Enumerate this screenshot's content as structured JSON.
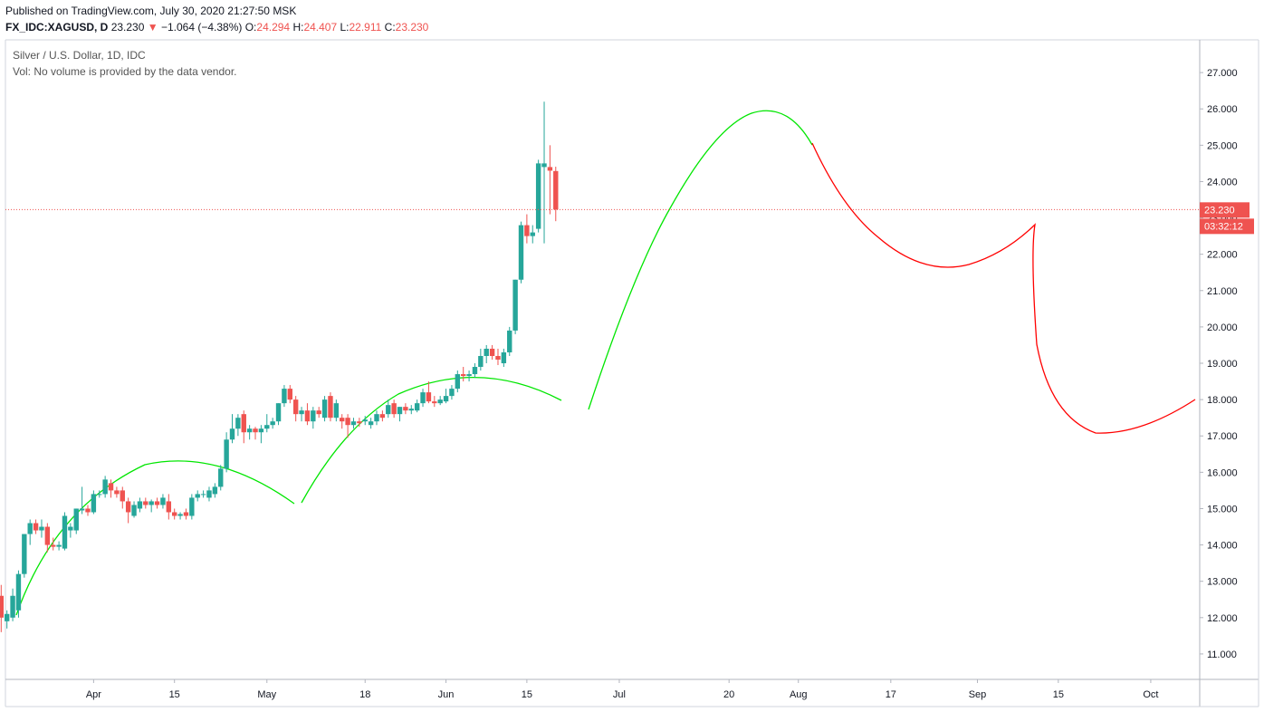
{
  "header": {
    "published": "Published on TradingView.com, July 30, 2020 21:27:50 MSK",
    "symbol": "FX_IDC:XAGUSD, D",
    "last": "23.230",
    "change_arrow": "▼",
    "change": "−1.064 (−4.38%)",
    "o_label": "O:",
    "o": "24.294",
    "h_label": "H:",
    "h": "24.407",
    "l_label": "L:",
    "l": "22.911",
    "c_label": "C:",
    "c": "23.230"
  },
  "legend": {
    "line1": "Silver / U.S. Dollar, 1D, IDC",
    "line2": "Vol: No volume is provided by the data vendor."
  },
  "price_tag": {
    "price": "23.230",
    "countdown": "03:32:12"
  },
  "colors": {
    "up": "#26a69a",
    "down": "#ef5350",
    "projection": "#ff0000",
    "cup_arcs": "#00e600"
  },
  "chart_data": {
    "type": "candlestick",
    "title": "Silver / U.S. Dollar, 1D, IDC",
    "ylim": [
      10.3,
      27.9
    ],
    "yticks": [
      "11.000",
      "12.000",
      "13.000",
      "14.000",
      "15.000",
      "16.000",
      "17.000",
      "18.000",
      "19.000",
      "20.000",
      "21.000",
      "22.000",
      "23.000",
      "24.000",
      "25.000",
      "26.000",
      "27.000"
    ],
    "xticks": [
      {
        "label": "Apr",
        "day": 1
      },
      {
        "label": "15",
        "day": 15
      },
      {
        "label": "May",
        "day": 31
      },
      {
        "label": "18",
        "day": 48
      },
      {
        "label": "Jun",
        "day": 62
      },
      {
        "label": "15",
        "day": 76
      },
      {
        "label": "Jul",
        "day": 92
      },
      {
        "label": "20",
        "day": 111
      },
      {
        "label": "Aug",
        "day": 123
      },
      {
        "label": "17",
        "day": 139
      },
      {
        "label": "Sep",
        "day": 154
      },
      {
        "label": "15",
        "day": 168
      },
      {
        "label": "Oct",
        "day": 184
      }
    ],
    "last_price": 23.23,
    "candles": [
      {
        "d": -15,
        "o": 12.6,
        "h": 12.9,
        "l": 11.6,
        "c": 12.0
      },
      {
        "d": -14,
        "o": 11.9,
        "h": 12.2,
        "l": 11.7,
        "c": 12.1
      },
      {
        "d": -13,
        "o": 12.0,
        "h": 12.8,
        "l": 11.9,
        "c": 12.6
      },
      {
        "d": -12,
        "o": 12.2,
        "h": 13.3,
        "l": 12.0,
        "c": 13.2
      },
      {
        "d": -11,
        "o": 13.2,
        "h": 14.3,
        "l": 13.1,
        "c": 14.3
      },
      {
        "d": -10,
        "o": 14.3,
        "h": 14.7,
        "l": 14.0,
        "c": 14.6
      },
      {
        "d": -9,
        "o": 14.6,
        "h": 14.7,
        "l": 14.3,
        "c": 14.4
      },
      {
        "d": -8,
        "o": 14.4,
        "h": 14.7,
        "l": 14.2,
        "c": 14.5
      },
      {
        "d": -7,
        "o": 14.5,
        "h": 14.6,
        "l": 13.8,
        "c": 14.0
      },
      {
        "d": -6,
        "o": 14.0,
        "h": 14.2,
        "l": 13.85,
        "c": 13.95
      },
      {
        "d": -5,
        "o": 13.95,
        "h": 14.1,
        "l": 13.85,
        "c": 14.0
      },
      {
        "d": -4,
        "o": 13.9,
        "h": 14.9,
        "l": 13.85,
        "c": 14.8
      },
      {
        "d": -3,
        "o": 14.4,
        "h": 14.6,
        "l": 14.2,
        "c": 14.5
      },
      {
        "d": -2,
        "o": 14.4,
        "h": 15.0,
        "l": 14.3,
        "c": 15.0
      },
      {
        "d": -1,
        "o": 14.95,
        "h": 15.6,
        "l": 14.85,
        "c": 15.0
      },
      {
        "d": 0,
        "o": 15.0,
        "h": 15.1,
        "l": 14.8,
        "c": 14.9
      },
      {
        "d": 1,
        "o": 14.9,
        "h": 15.5,
        "l": 14.85,
        "c": 15.4
      },
      {
        "d": 2,
        "o": 15.4,
        "h": 15.5,
        "l": 15.3,
        "c": 15.4
      },
      {
        "d": 3,
        "o": 15.4,
        "h": 15.9,
        "l": 15.3,
        "c": 15.8
      },
      {
        "d": 4,
        "o": 15.7,
        "h": 15.8,
        "l": 15.3,
        "c": 15.5
      },
      {
        "d": 5,
        "o": 15.5,
        "h": 15.6,
        "l": 15.3,
        "c": 15.4
      },
      {
        "d": 6,
        "o": 15.5,
        "h": 15.6,
        "l": 15.0,
        "c": 15.2
      },
      {
        "d": 7,
        "o": 15.2,
        "h": 15.3,
        "l": 14.6,
        "c": 14.9
      },
      {
        "d": 8,
        "o": 14.8,
        "h": 15.2,
        "l": 14.75,
        "c": 15.1
      },
      {
        "d": 9,
        "o": 15.0,
        "h": 15.3,
        "l": 14.9,
        "c": 15.2
      },
      {
        "d": 10,
        "o": 15.2,
        "h": 15.3,
        "l": 15.0,
        "c": 15.1
      },
      {
        "d": 11,
        "o": 15.1,
        "h": 15.25,
        "l": 14.9,
        "c": 15.2
      },
      {
        "d": 12,
        "o": 15.2,
        "h": 15.3,
        "l": 15.0,
        "c": 15.1
      },
      {
        "d": 13,
        "o": 15.1,
        "h": 15.4,
        "l": 15.0,
        "c": 15.3
      },
      {
        "d": 14,
        "o": 15.2,
        "h": 15.4,
        "l": 14.7,
        "c": 14.9
      },
      {
        "d": 15,
        "o": 14.9,
        "h": 15.0,
        "l": 14.7,
        "c": 14.8
      },
      {
        "d": 16,
        "o": 14.8,
        "h": 14.9,
        "l": 14.7,
        "c": 14.85
      },
      {
        "d": 17,
        "o": 14.9,
        "h": 15.0,
        "l": 14.7,
        "c": 14.8
      },
      {
        "d": 18,
        "o": 14.8,
        "h": 15.4,
        "l": 14.7,
        "c": 15.3
      },
      {
        "d": 19,
        "o": 15.3,
        "h": 15.5,
        "l": 15.2,
        "c": 15.4
      },
      {
        "d": 20,
        "o": 15.4,
        "h": 15.5,
        "l": 15.3,
        "c": 15.4
      },
      {
        "d": 21,
        "o": 15.3,
        "h": 15.6,
        "l": 15.2,
        "c": 15.5
      },
      {
        "d": 22,
        "o": 15.4,
        "h": 15.7,
        "l": 15.3,
        "c": 15.6
      },
      {
        "d": 23,
        "o": 15.6,
        "h": 16.2,
        "l": 15.5,
        "c": 16.1
      },
      {
        "d": 24,
        "o": 16.1,
        "h": 17.1,
        "l": 16.0,
        "c": 16.9
      },
      {
        "d": 25,
        "o": 16.9,
        "h": 17.6,
        "l": 16.8,
        "c": 17.2
      },
      {
        "d": 26,
        "o": 17.2,
        "h": 17.6,
        "l": 17.0,
        "c": 17.5
      },
      {
        "d": 27,
        "o": 17.6,
        "h": 17.7,
        "l": 16.8,
        "c": 17.1
      },
      {
        "d": 28,
        "o": 17.1,
        "h": 17.3,
        "l": 16.9,
        "c": 17.2
      },
      {
        "d": 29,
        "o": 17.2,
        "h": 17.25,
        "l": 16.9,
        "c": 17.1
      },
      {
        "d": 30,
        "o": 17.1,
        "h": 17.3,
        "l": 16.8,
        "c": 17.2
      },
      {
        "d": 31,
        "o": 17.2,
        "h": 17.6,
        "l": 17.1,
        "c": 17.3
      },
      {
        "d": 32,
        "o": 17.3,
        "h": 17.5,
        "l": 17.2,
        "c": 17.4
      },
      {
        "d": 33,
        "o": 17.4,
        "h": 17.9,
        "l": 17.3,
        "c": 17.9
      },
      {
        "d": 34,
        "o": 17.9,
        "h": 18.4,
        "l": 17.8,
        "c": 18.3
      },
      {
        "d": 35,
        "o": 18.3,
        "h": 18.4,
        "l": 17.9,
        "c": 18.0
      },
      {
        "d": 36,
        "o": 18.0,
        "h": 18.1,
        "l": 17.4,
        "c": 17.6
      },
      {
        "d": 37,
        "o": 17.6,
        "h": 17.8,
        "l": 17.4,
        "c": 17.7
      },
      {
        "d": 38,
        "o": 17.7,
        "h": 17.9,
        "l": 17.3,
        "c": 17.4
      },
      {
        "d": 39,
        "o": 17.4,
        "h": 17.8,
        "l": 17.2,
        "c": 17.7
      },
      {
        "d": 40,
        "o": 17.7,
        "h": 17.8,
        "l": 17.5,
        "c": 17.6
      },
      {
        "d": 41,
        "o": 17.5,
        "h": 18.1,
        "l": 17.4,
        "c": 18.0
      },
      {
        "d": 42,
        "o": 18.1,
        "h": 18.2,
        "l": 17.4,
        "c": 17.5
      },
      {
        "d": 43,
        "o": 17.5,
        "h": 18.0,
        "l": 17.4,
        "c": 17.9
      },
      {
        "d": 44,
        "o": 17.5,
        "h": 17.6,
        "l": 17.2,
        "c": 17.4
      },
      {
        "d": 45,
        "o": 17.5,
        "h": 17.6,
        "l": 16.95,
        "c": 17.3
      },
      {
        "d": 46,
        "o": 17.3,
        "h": 17.5,
        "l": 17.2,
        "c": 17.4
      },
      {
        "d": 47,
        "o": 17.4,
        "h": 17.5,
        "l": 17.25,
        "c": 17.35
      },
      {
        "d": 48,
        "o": 17.4,
        "h": 17.55,
        "l": 17.3,
        "c": 17.45
      },
      {
        "d": 49,
        "o": 17.3,
        "h": 17.5,
        "l": 17.2,
        "c": 17.4
      },
      {
        "d": 50,
        "o": 17.4,
        "h": 17.7,
        "l": 17.3,
        "c": 17.6
      },
      {
        "d": 51,
        "o": 17.6,
        "h": 17.7,
        "l": 17.4,
        "c": 17.5
      },
      {
        "d": 52,
        "o": 17.6,
        "h": 18.0,
        "l": 17.5,
        "c": 17.85
      },
      {
        "d": 53,
        "o": 17.9,
        "h": 18.0,
        "l": 17.5,
        "c": 17.6
      },
      {
        "d": 54,
        "o": 17.6,
        "h": 17.8,
        "l": 17.4,
        "c": 17.8
      },
      {
        "d": 55,
        "o": 17.8,
        "h": 17.9,
        "l": 17.6,
        "c": 17.7
      },
      {
        "d": 56,
        "o": 17.7,
        "h": 17.85,
        "l": 17.6,
        "c": 17.75
      },
      {
        "d": 57,
        "o": 17.7,
        "h": 18.0,
        "l": 17.65,
        "c": 17.9
      },
      {
        "d": 58,
        "o": 17.9,
        "h": 18.3,
        "l": 17.8,
        "c": 18.2
      },
      {
        "d": 59,
        "o": 18.2,
        "h": 18.5,
        "l": 17.9,
        "c": 17.95
      },
      {
        "d": 60,
        "o": 17.95,
        "h": 18.1,
        "l": 17.8,
        "c": 17.9
      },
      {
        "d": 61,
        "o": 17.9,
        "h": 18.1,
        "l": 17.85,
        "c": 18.0
      },
      {
        "d": 62,
        "o": 17.95,
        "h": 18.3,
        "l": 17.9,
        "c": 18.1
      },
      {
        "d": 63,
        "o": 18.1,
        "h": 18.4,
        "l": 18.0,
        "c": 18.3
      },
      {
        "d": 64,
        "o": 18.3,
        "h": 18.8,
        "l": 18.2,
        "c": 18.7
      },
      {
        "d": 65,
        "o": 18.7,
        "h": 18.9,
        "l": 18.5,
        "c": 18.65
      },
      {
        "d": 66,
        "o": 18.65,
        "h": 18.8,
        "l": 18.5,
        "c": 18.7
      },
      {
        "d": 67,
        "o": 18.7,
        "h": 19.0,
        "l": 18.6,
        "c": 18.9
      },
      {
        "d": 68,
        "o": 18.9,
        "h": 19.4,
        "l": 18.8,
        "c": 19.2
      },
      {
        "d": 69,
        "o": 19.2,
        "h": 19.5,
        "l": 19.0,
        "c": 19.4
      },
      {
        "d": 70,
        "o": 19.4,
        "h": 19.5,
        "l": 19.1,
        "c": 19.2
      },
      {
        "d": 71,
        "o": 19.2,
        "h": 19.4,
        "l": 18.95,
        "c": 19.1
      },
      {
        "d": 72,
        "o": 19.0,
        "h": 19.4,
        "l": 18.9,
        "c": 19.3
      },
      {
        "d": 73,
        "o": 19.3,
        "h": 20.0,
        "l": 19.2,
        "c": 19.9
      },
      {
        "d": 74,
        "o": 19.9,
        "h": 21.3,
        "l": 19.8,
        "c": 21.3
      },
      {
        "d": 75,
        "o": 21.3,
        "h": 22.9,
        "l": 21.2,
        "c": 22.8
      },
      {
        "d": 76,
        "o": 22.8,
        "h": 23.1,
        "l": 22.3,
        "c": 22.5
      },
      {
        "d": 77,
        "o": 22.5,
        "h": 22.8,
        "l": 22.3,
        "c": 22.6
      },
      {
        "d": 78,
        "o": 22.7,
        "h": 24.6,
        "l": 22.6,
        "c": 24.5
      },
      {
        "d": 79,
        "o": 24.4,
        "h": 26.2,
        "l": 22.3,
        "c": 24.5
      },
      {
        "d": 80,
        "o": 24.4,
        "h": 25.0,
        "l": 23.1,
        "c": 24.3
      },
      {
        "d": 81,
        "o": 24.29,
        "h": 24.41,
        "l": 22.91,
        "c": 23.23
      }
    ]
  }
}
